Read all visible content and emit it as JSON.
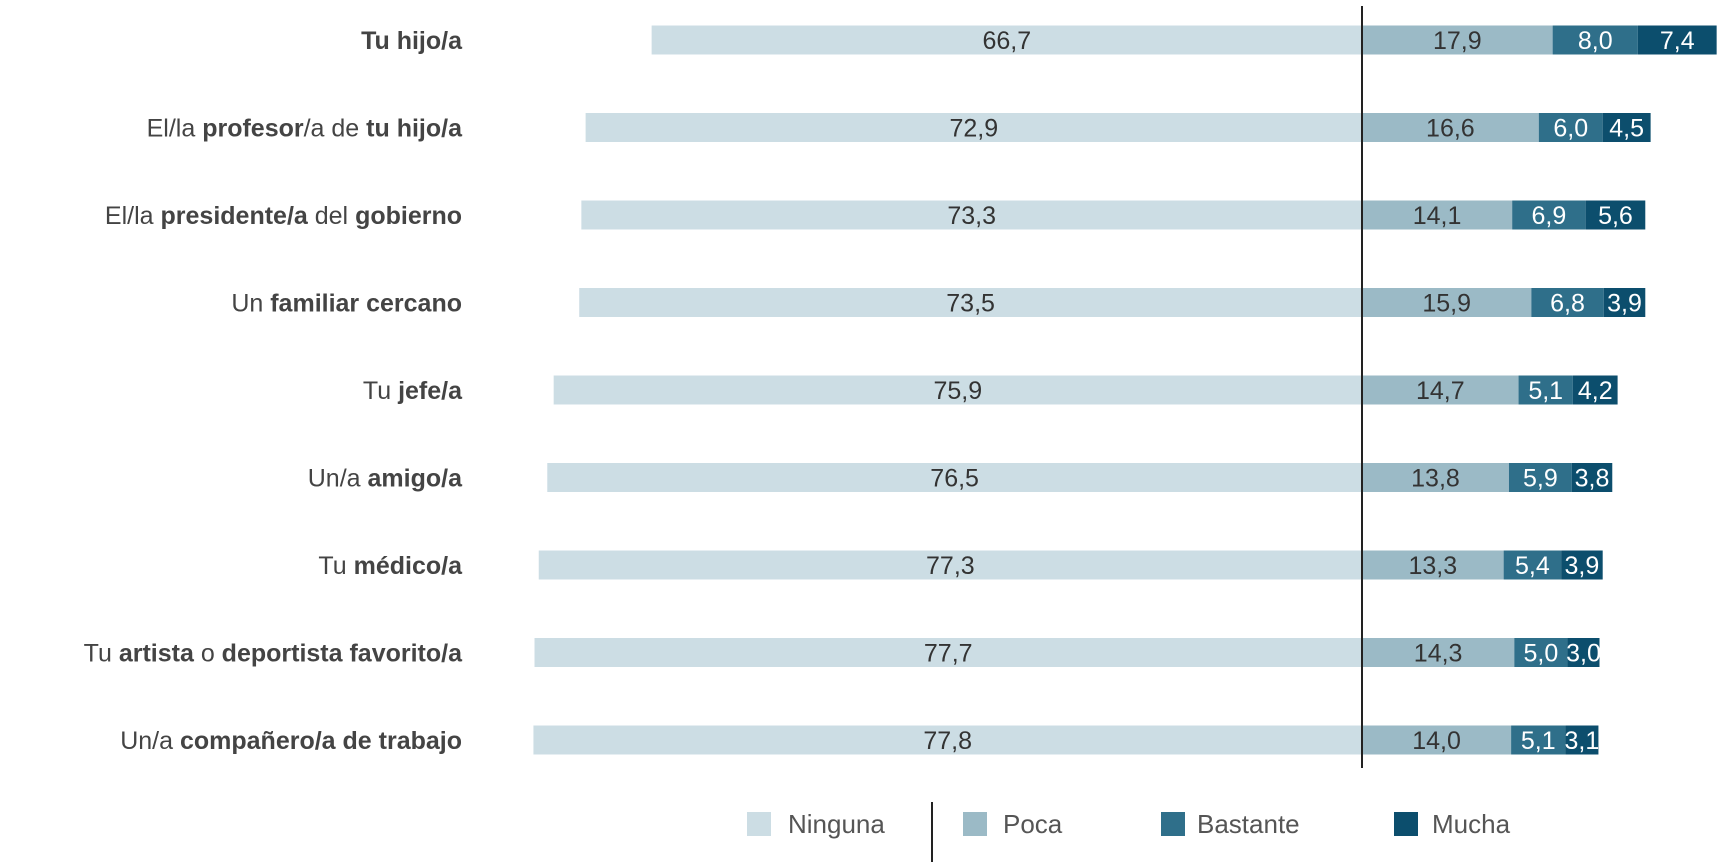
{
  "chart_data": {
    "type": "bar",
    "orientation": "horizontal-diverging",
    "categories": [
      "Tu hijo/a",
      "El/la profesor/a de tu hijo/a",
      "El/la presidente/a del gobierno",
      "Un familiar cercano",
      "Tu jefe/a",
      "Un/a amigo/a",
      "Tu médico/a",
      "Tu artista o deportista favorito/a",
      "Un/a compañero/a de trabajo"
    ],
    "category_label_parts": [
      [
        {
          "t": "Tu hijo/a",
          "b": true
        }
      ],
      [
        {
          "t": "El/la ",
          "b": false
        },
        {
          "t": "profesor",
          "b": true
        },
        {
          "t": "/a de ",
          "b": false
        },
        {
          "t": "tu hijo/a",
          "b": true
        }
      ],
      [
        {
          "t": "El/la ",
          "b": false
        },
        {
          "t": "presidente/a",
          "b": true
        },
        {
          "t": " del ",
          "b": false
        },
        {
          "t": "gobierno",
          "b": true
        }
      ],
      [
        {
          "t": "Un ",
          "b": false
        },
        {
          "t": "familiar cercano",
          "b": true
        }
      ],
      [
        {
          "t": "Tu ",
          "b": false
        },
        {
          "t": "jefe/a",
          "b": true
        }
      ],
      [
        {
          "t": "Un/a ",
          "b": false
        },
        {
          "t": "amigo/a",
          "b": true
        }
      ],
      [
        {
          "t": "Tu ",
          "b": false
        },
        {
          "t": "médico/a",
          "b": true
        }
      ],
      [
        {
          "t": "Tu ",
          "b": false
        },
        {
          "t": "artista",
          "b": true
        },
        {
          "t": " o ",
          "b": false
        },
        {
          "t": "deportista favorito/a",
          "b": true
        }
      ],
      [
        {
          "t": "Un/a ",
          "b": false
        },
        {
          "t": "compañero/a de trabajo",
          "b": true
        }
      ]
    ],
    "series": [
      {
        "name": "Ninguna",
        "color": "#ccdde4",
        "side": "left",
        "values": [
          66.7,
          72.9,
          73.3,
          73.5,
          75.9,
          76.5,
          77.3,
          77.7,
          77.8
        ],
        "labels": [
          "66,7",
          "72,9",
          "73,3",
          "73,5",
          "75,9",
          "76,5",
          "77,3",
          "77,7",
          "77,8"
        ]
      },
      {
        "name": "Poca",
        "color": "#9bbac6",
        "side": "right",
        "values": [
          17.9,
          16.6,
          14.1,
          15.9,
          14.7,
          13.8,
          13.3,
          14.3,
          14.0
        ],
        "labels": [
          "17,9",
          "16,6",
          "14,1",
          "15,9",
          "14,7",
          "13,8",
          "13,3",
          "14,3",
          "14,0"
        ]
      },
      {
        "name": "Bastante",
        "color": "#2f6f8a",
        "side": "right",
        "values": [
          8.0,
          6.0,
          6.9,
          6.8,
          5.1,
          5.9,
          5.4,
          5.0,
          5.1
        ],
        "labels": [
          "8,0",
          "6,0",
          "6,9",
          "6,8",
          "5,1",
          "5,9",
          "5,4",
          "5,0",
          "5,1"
        ]
      },
      {
        "name": "Mucha",
        "color": "#0c4e6d",
        "side": "right",
        "values": [
          7.4,
          4.5,
          5.6,
          3.9,
          4.2,
          3.8,
          3.9,
          3.0,
          3.1
        ],
        "labels": [
          "7,4",
          "4,5",
          "5,6",
          "3,9",
          "4,2",
          "3,8",
          "3,9",
          "3,0",
          "3,1"
        ]
      }
    ],
    "legend": {
      "placement": "bottom"
    }
  }
}
